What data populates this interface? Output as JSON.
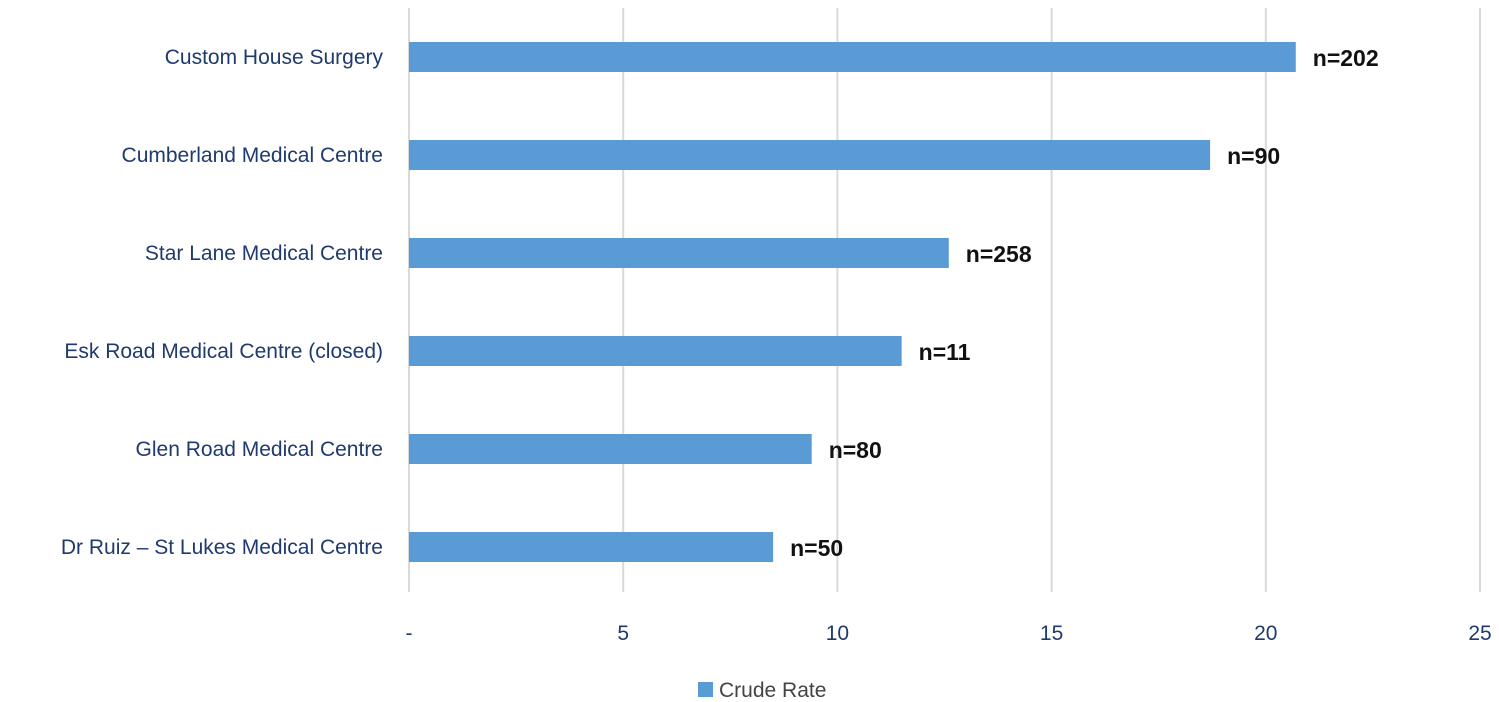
{
  "chart_data": {
    "type": "bar",
    "orientation": "horizontal",
    "categories": [
      "Custom House Surgery",
      "Cumberland Medical Centre",
      "Star Lane Medical Centre",
      "Esk Road Medical Centre (closed)",
      "Glen Road Medical Centre",
      "Dr Ruiz – St Lukes Medical Centre"
    ],
    "series": [
      {
        "name": "Crude Rate",
        "values": [
          20.7,
          18.7,
          12.6,
          11.5,
          9.4,
          8.5
        ],
        "data_labels": [
          "n=202",
          "n=90",
          "n=258",
          "n=11",
          "n=80",
          "n=50"
        ]
      }
    ],
    "xlim": [
      0,
      25
    ],
    "x_ticks": [
      {
        "value": 0,
        "label": "-"
      },
      {
        "value": 5,
        "label": "5"
      },
      {
        "value": 10,
        "label": "10"
      },
      {
        "value": 15,
        "label": "15"
      },
      {
        "value": 20,
        "label": "20"
      },
      {
        "value": 25,
        "label": "25"
      }
    ],
    "grid": true,
    "legend": {
      "position": "bottom",
      "entries": [
        "Crude Rate"
      ]
    },
    "colors": {
      "bar": "#5b9bd5",
      "grid": "#d9d9d9",
      "axis_text": "#1f3a6e",
      "data_label": "#111111"
    }
  }
}
